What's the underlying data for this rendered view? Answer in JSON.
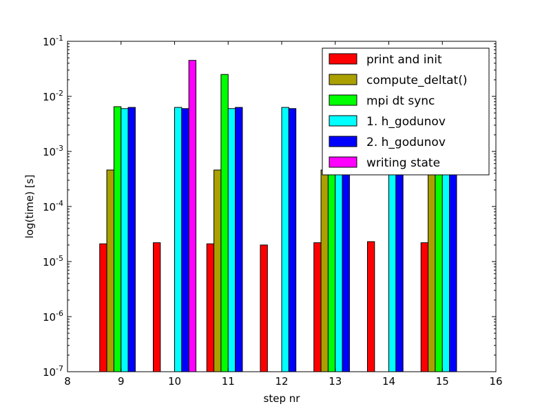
{
  "chart_data": {
    "type": "bar",
    "title": "",
    "xlabel": "step nr",
    "ylabel": "log(time) [s]",
    "xlim": [
      8,
      16
    ],
    "xticks": [
      8,
      9,
      10,
      11,
      12,
      13,
      14,
      15,
      16
    ],
    "yscale": "log",
    "ylim": [
      1e-07,
      0.1
    ],
    "yticks": [
      {
        "value": 1e-07,
        "base": "10",
        "exp": "-7"
      },
      {
        "value": 1e-06,
        "base": "10",
        "exp": "-6"
      },
      {
        "value": 1e-05,
        "base": "10",
        "exp": "-5"
      },
      {
        "value": 0.0001,
        "base": "10",
        "exp": "-4"
      },
      {
        "value": 0.001,
        "base": "10",
        "exp": "-3"
      },
      {
        "value": 0.01,
        "base": "10",
        "exp": "-2"
      },
      {
        "value": 0.1,
        "base": "10",
        "exp": "-1"
      }
    ],
    "grid": false,
    "legend_position": "top-right",
    "bar_width": 0.133,
    "categories": [
      9,
      10,
      11,
      12,
      13,
      14,
      15
    ],
    "series": [
      {
        "name": "print and init",
        "color": "#ff0000",
        "values": [
          2.1e-05,
          2.2e-05,
          2.1e-05,
          2e-05,
          2.2e-05,
          2.3e-05,
          2.2e-05
        ]
      },
      {
        "name": "compute_deltat()",
        "color": "#aaa000",
        "values": [
          0.00046,
          null,
          0.00046,
          null,
          0.00046,
          null,
          0.00046
        ]
      },
      {
        "name": "mpi dt sync",
        "color": "#00ff00",
        "values": [
          0.0065,
          null,
          0.025,
          null,
          0.0062,
          null,
          0.0062
        ]
      },
      {
        "name": "1. h_godunov",
        "color": "#00ffff",
        "values": [
          0.006,
          0.0063,
          0.006,
          0.0063,
          0.0062,
          0.0062,
          0.0062
        ]
      },
      {
        "name": "2. h_godunov",
        "color": "#0000ff",
        "values": [
          0.0063,
          0.006,
          0.0063,
          0.006,
          0.0062,
          0.0062,
          0.0062
        ]
      },
      {
        "name": "writing state",
        "color": "#ff00ff",
        "values": [
          null,
          0.045,
          null,
          null,
          null,
          null,
          null
        ]
      }
    ]
  }
}
